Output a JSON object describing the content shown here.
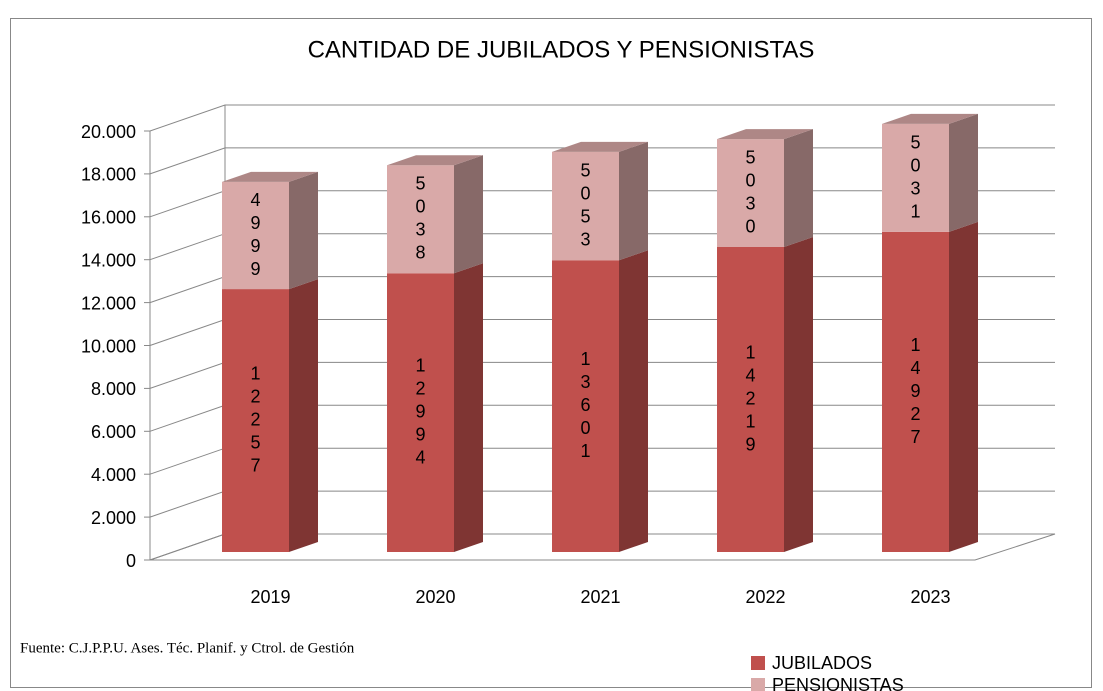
{
  "chart_data": {
    "type": "bar3d-stacked",
    "title": "CANTIDAD DE JUBILADOS Y PENSIONISTAS",
    "categories": [
      "2019",
      "2020",
      "2021",
      "2022",
      "2023"
    ],
    "series": [
      {
        "name": "JUBILADOS",
        "color": "#c0504d",
        "values": [
          12257,
          12994,
          13601,
          14219,
          14927
        ]
      },
      {
        "name": "PENSIONISTAS",
        "color": "#d9a9a8",
        "values": [
          4999,
          5038,
          5053,
          5030,
          5031
        ]
      }
    ],
    "ylim": [
      0,
      20000
    ],
    "yticks": [
      0,
      {
        "value": 2000,
        "label": "2.000"
      },
      {
        "value": 4000,
        "label": "4.000"
      },
      {
        "value": 6000,
        "label": "6.000"
      },
      {
        "value": 8000,
        "label": "8.000"
      },
      {
        "value": 10000,
        "label": "10.000"
      },
      {
        "value": 12000,
        "label": "12.000"
      },
      {
        "value": 14000,
        "label": "14.000"
      },
      {
        "value": 16000,
        "label": "16.000"
      },
      {
        "value": 18000,
        "label": "18.000"
      },
      {
        "value": 20000,
        "label": "20.000"
      }
    ],
    "grid": true,
    "legend": "bottom-right",
    "source": "Fuente: C.J.P.P.U. Ases. Téc. Planif. y Ctrol. de Gestión"
  }
}
